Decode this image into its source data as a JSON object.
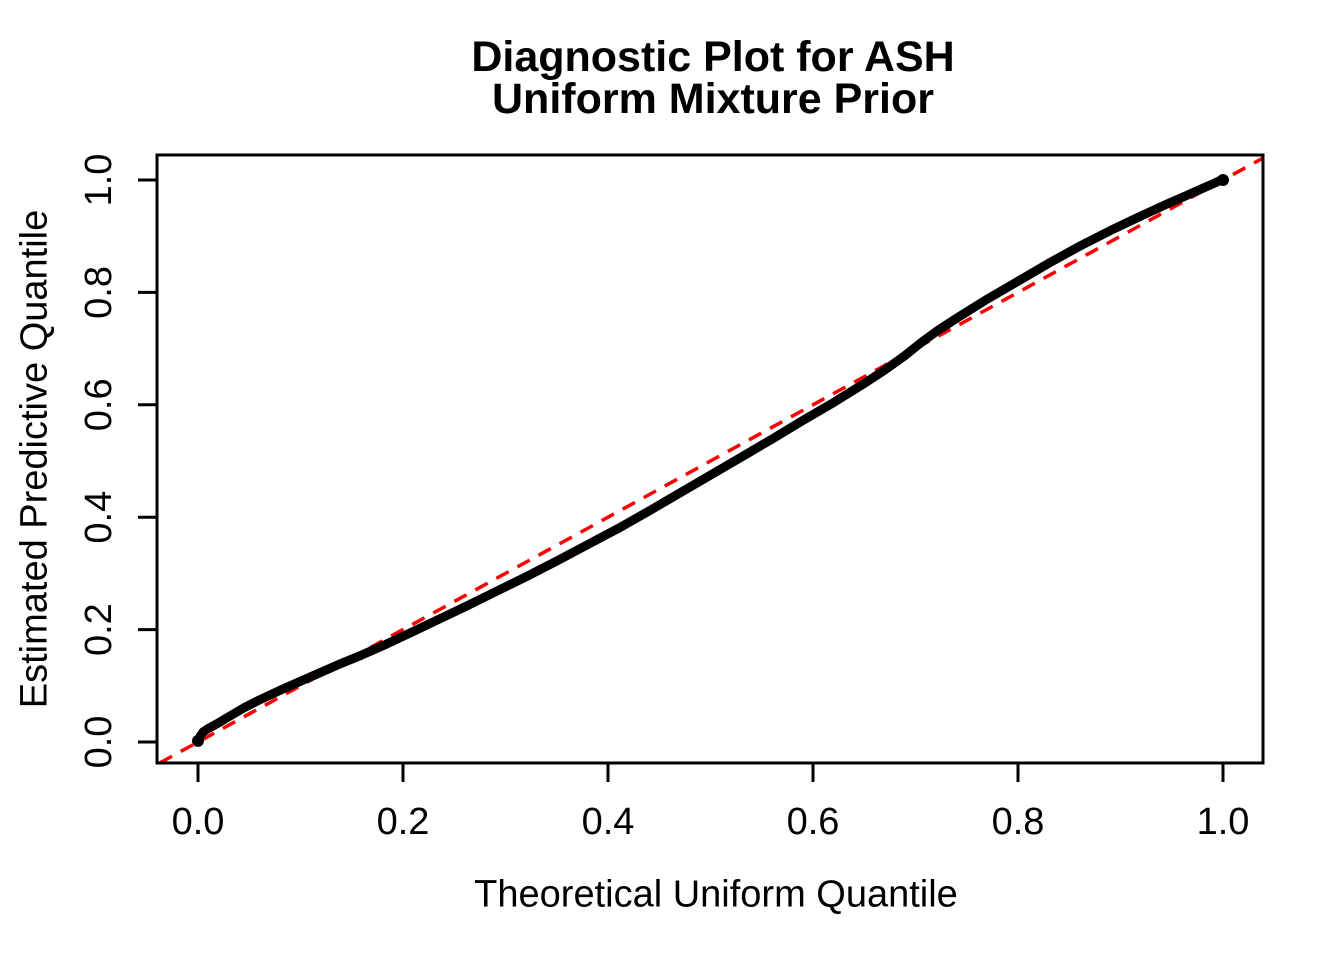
{
  "chart_data": {
    "type": "line",
    "title_line1": "Diagnostic Plot for ASH",
    "title_line2": "Uniform Mixture Prior",
    "xlabel": "Theoretical Uniform Quantile",
    "ylabel": "Estimated Predictive Quantile",
    "xlim": [
      -0.04,
      1.04
    ],
    "ylim": [
      -0.04,
      1.04
    ],
    "grid": false,
    "legend": "none",
    "x_ticks": [
      0.0,
      0.2,
      0.4,
      0.6,
      0.8,
      1.0
    ],
    "y_ticks": [
      0.0,
      0.2,
      0.4,
      0.6,
      0.8,
      1.0
    ],
    "x_tick_labels": [
      "0.0",
      "0.2",
      "0.4",
      "0.6",
      "0.8",
      "1.0"
    ],
    "y_tick_labels": [
      "0.0",
      "0.2",
      "0.4",
      "0.6",
      "0.8",
      "1.0"
    ],
    "series": [
      {
        "name": "estimated-predictive-quantile-curve",
        "type": "line",
        "color": "#000000",
        "line_width": 9,
        "points": [
          [
            0.0,
            0.002
          ],
          [
            0.002,
            0.01
          ],
          [
            0.005,
            0.018
          ],
          [
            0.01,
            0.024
          ],
          [
            0.02,
            0.034
          ],
          [
            0.03,
            0.045
          ],
          [
            0.045,
            0.061
          ],
          [
            0.06,
            0.075
          ],
          [
            0.08,
            0.092
          ],
          [
            0.1,
            0.108
          ],
          [
            0.12,
            0.124
          ],
          [
            0.14,
            0.14
          ],
          [
            0.16,
            0.155
          ],
          [
            0.18,
            0.171
          ],
          [
            0.2,
            0.188
          ],
          [
            0.23,
            0.214
          ],
          [
            0.26,
            0.24
          ],
          [
            0.29,
            0.267
          ],
          [
            0.32,
            0.294
          ],
          [
            0.35,
            0.322
          ],
          [
            0.38,
            0.351
          ],
          [
            0.41,
            0.38
          ],
          [
            0.44,
            0.411
          ],
          [
            0.47,
            0.443
          ],
          [
            0.5,
            0.475
          ],
          [
            0.53,
            0.507
          ],
          [
            0.56,
            0.539
          ],
          [
            0.59,
            0.572
          ],
          [
            0.62,
            0.604
          ],
          [
            0.65,
            0.638
          ],
          [
            0.67,
            0.662
          ],
          [
            0.69,
            0.688
          ],
          [
            0.705,
            0.71
          ],
          [
            0.72,
            0.73
          ],
          [
            0.74,
            0.754
          ],
          [
            0.77,
            0.788
          ],
          [
            0.8,
            0.82
          ],
          [
            0.83,
            0.852
          ],
          [
            0.86,
            0.882
          ],
          [
            0.89,
            0.91
          ],
          [
            0.92,
            0.936
          ],
          [
            0.945,
            0.957
          ],
          [
            0.965,
            0.973
          ],
          [
            0.98,
            0.985
          ],
          [
            0.99,
            0.993
          ],
          [
            0.997,
            0.999
          ],
          [
            1.0,
            1.0
          ]
        ]
      }
    ],
    "reference_line": {
      "name": "identity-line",
      "intercept": 0,
      "slope": 1,
      "color": "#FF0000",
      "style": "dashed",
      "line_width": 3.5
    },
    "colors": {
      "background": "#FFFFFF",
      "axis": "#000000",
      "curve": "#000000",
      "reference": "#FF0000"
    }
  }
}
